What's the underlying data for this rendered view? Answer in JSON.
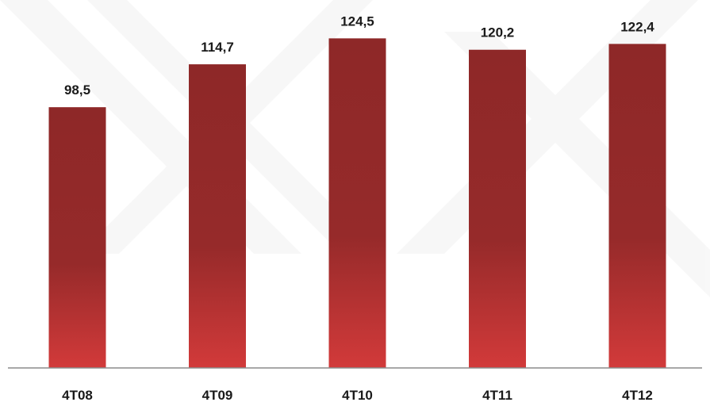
{
  "chart_data": {
    "type": "bar",
    "categories": [
      "4T08",
      "4T09",
      "4T10",
      "4T11",
      "4T12"
    ],
    "values": [
      98.5,
      114.7,
      124.5,
      120.2,
      122.4
    ],
    "value_labels": [
      "98,5",
      "114,7",
      "124,5",
      "120,2",
      "122,4"
    ],
    "title": "",
    "xlabel": "",
    "ylabel": "",
    "ylim": [
      0,
      133
    ],
    "grid": false,
    "legend": "none",
    "bar_color_top": "#8e2828",
    "bar_color_bottom": "#d23a3a",
    "axis_color": "#8c8c8c"
  }
}
